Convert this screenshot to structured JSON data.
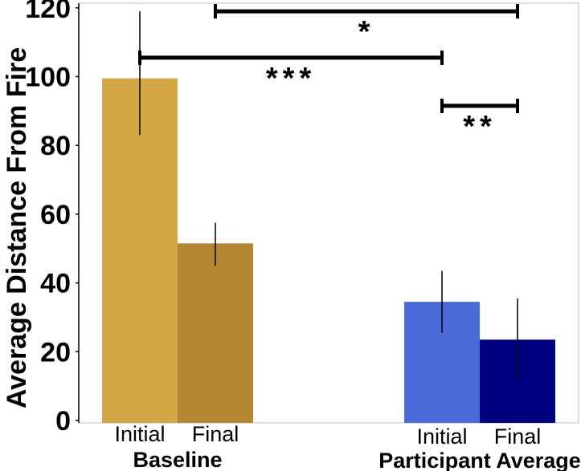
{
  "chart_data": {
    "type": "bar",
    "ylabel": "Average Distance From Fire",
    "ylim": [
      0,
      125
    ],
    "yticks": [
      0,
      20,
      40,
      60,
      80,
      100,
      120
    ],
    "grid": false,
    "groups": [
      {
        "name": "Baseline",
        "bars": [
          {
            "label": "Initial",
            "value": 99.5,
            "err_low": 83,
            "err_high": 119,
            "color": "#d3a744"
          },
          {
            "label": "Final",
            "value": 51.5,
            "err_low": 45,
            "err_high": 57.5,
            "color": "#b38631"
          }
        ]
      },
      {
        "name": "Participant Average",
        "bars": [
          {
            "label": "Initial",
            "value": 34.5,
            "err_low": 25.5,
            "err_high": 43.5,
            "color": "#4a6ada"
          },
          {
            "label": "Final",
            "value": 23.5,
            "err_low": 11.5,
            "err_high": 35.5,
            "color": "#000080"
          }
        ]
      }
    ],
    "significance": [
      {
        "from": "Baseline-Final",
        "to": "Participant Average-Final",
        "y": 119,
        "label": "*"
      },
      {
        "from": "Baseline-Initial",
        "to": "Participant Average-Initial",
        "y": 105.5,
        "label": "***"
      },
      {
        "from": "Participant Average-Initial",
        "to": "Participant Average-Final",
        "y": 91.5,
        "label": "**"
      }
    ]
  }
}
